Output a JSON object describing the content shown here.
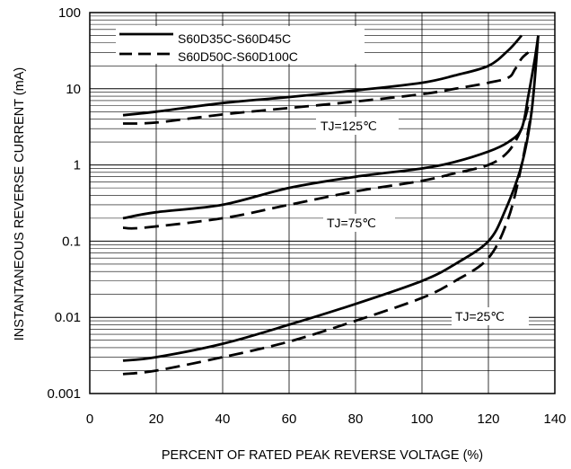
{
  "chart_data": {
    "type": "line",
    "xlabel": "PERCENT OF RATED PEAK REVERSE VOLTAGE (%)",
    "ylabel": "INSTANTANEOUS REVERSE CURRENT (mA)",
    "xlim": [
      0,
      140
    ],
    "ylim": [
      0.001,
      100
    ],
    "yscale": "log",
    "grid": true,
    "legend_position": "top-left",
    "x_ticks": [
      0,
      20,
      40,
      60,
      80,
      100,
      120,
      140
    ],
    "x_tick_labels": [
      "0",
      "20",
      "40",
      "60",
      "80",
      "100",
      "120",
      "140"
    ],
    "y_ticks": [
      0.001,
      0.01,
      0.1,
      1,
      10,
      100
    ],
    "y_tick_labels": [
      "0.001",
      "0.01",
      "0.1",
      "1",
      "10",
      "100"
    ],
    "legend": [
      {
        "label": "S60D35C-S60D45C",
        "style": "solid"
      },
      {
        "label": "S60D50C-S60D100C",
        "style": "dashed"
      }
    ],
    "annotations": [
      {
        "text": "TJ=125℃",
        "x": 100,
        "y": 4.4
      },
      {
        "text": "TJ=75℃",
        "x": 90,
        "y": 0.15
      },
      {
        "text": "TJ=25℃",
        "x": 125,
        "y": 0.01
      }
    ],
    "series": [
      {
        "group": "S60D35C-S60D45C",
        "condition": "TJ=125℃",
        "style": "solid",
        "x": [
          10,
          20,
          40,
          60,
          80,
          100,
          110,
          120,
          126,
          130
        ],
        "y": [
          4.5,
          5.0,
          6.5,
          7.8,
          9.5,
          12,
          15,
          20,
          32,
          50
        ]
      },
      {
        "group": "S60D50C-S60D100C",
        "condition": "TJ=125℃",
        "style": "dashed",
        "x": [
          10,
          20,
          40,
          60,
          80,
          100,
          110,
          120,
          126,
          128,
          130,
          132
        ],
        "y": [
          3.5,
          3.6,
          4.6,
          5.6,
          6.8,
          8.5,
          10,
          12,
          14,
          18,
          25,
          30
        ]
      },
      {
        "group": "S60D35C-S60D45C",
        "condition": "TJ=75℃",
        "style": "solid",
        "x": [
          10,
          20,
          40,
          60,
          80,
          100,
          110,
          120,
          126,
          130,
          132,
          134,
          135
        ],
        "y": [
          0.2,
          0.24,
          0.3,
          0.5,
          0.7,
          0.9,
          1.1,
          1.5,
          2.0,
          3.0,
          8,
          25,
          50
        ]
      },
      {
        "group": "S60D50C-S60D100C",
        "condition": "TJ=75℃",
        "style": "dashed",
        "x": [
          10,
          16,
          40,
          60,
          80,
          100,
          110,
          120,
          126,
          130,
          132
        ],
        "y": [
          0.15,
          0.15,
          0.2,
          0.3,
          0.45,
          0.62,
          0.78,
          1.0,
          1.5,
          3.0,
          6.0
        ]
      },
      {
        "group": "S60D35C-S60D45C",
        "condition": "TJ=25℃",
        "style": "solid",
        "x": [
          10,
          20,
          40,
          60,
          80,
          100,
          110,
          120,
          125,
          130,
          133,
          135
        ],
        "y": [
          0.0027,
          0.003,
          0.0045,
          0.008,
          0.015,
          0.03,
          0.05,
          0.1,
          0.25,
          1.0,
          5.0,
          50
        ]
      },
      {
        "group": "S60D50C-S60D100C",
        "condition": "TJ=25℃",
        "style": "dashed",
        "x": [
          10,
          20,
          40,
          60,
          80,
          100,
          110,
          120,
          126,
          130,
          133
        ],
        "y": [
          0.0018,
          0.002,
          0.003,
          0.0048,
          0.009,
          0.018,
          0.03,
          0.06,
          0.2,
          1.0,
          5.0
        ]
      }
    ]
  }
}
